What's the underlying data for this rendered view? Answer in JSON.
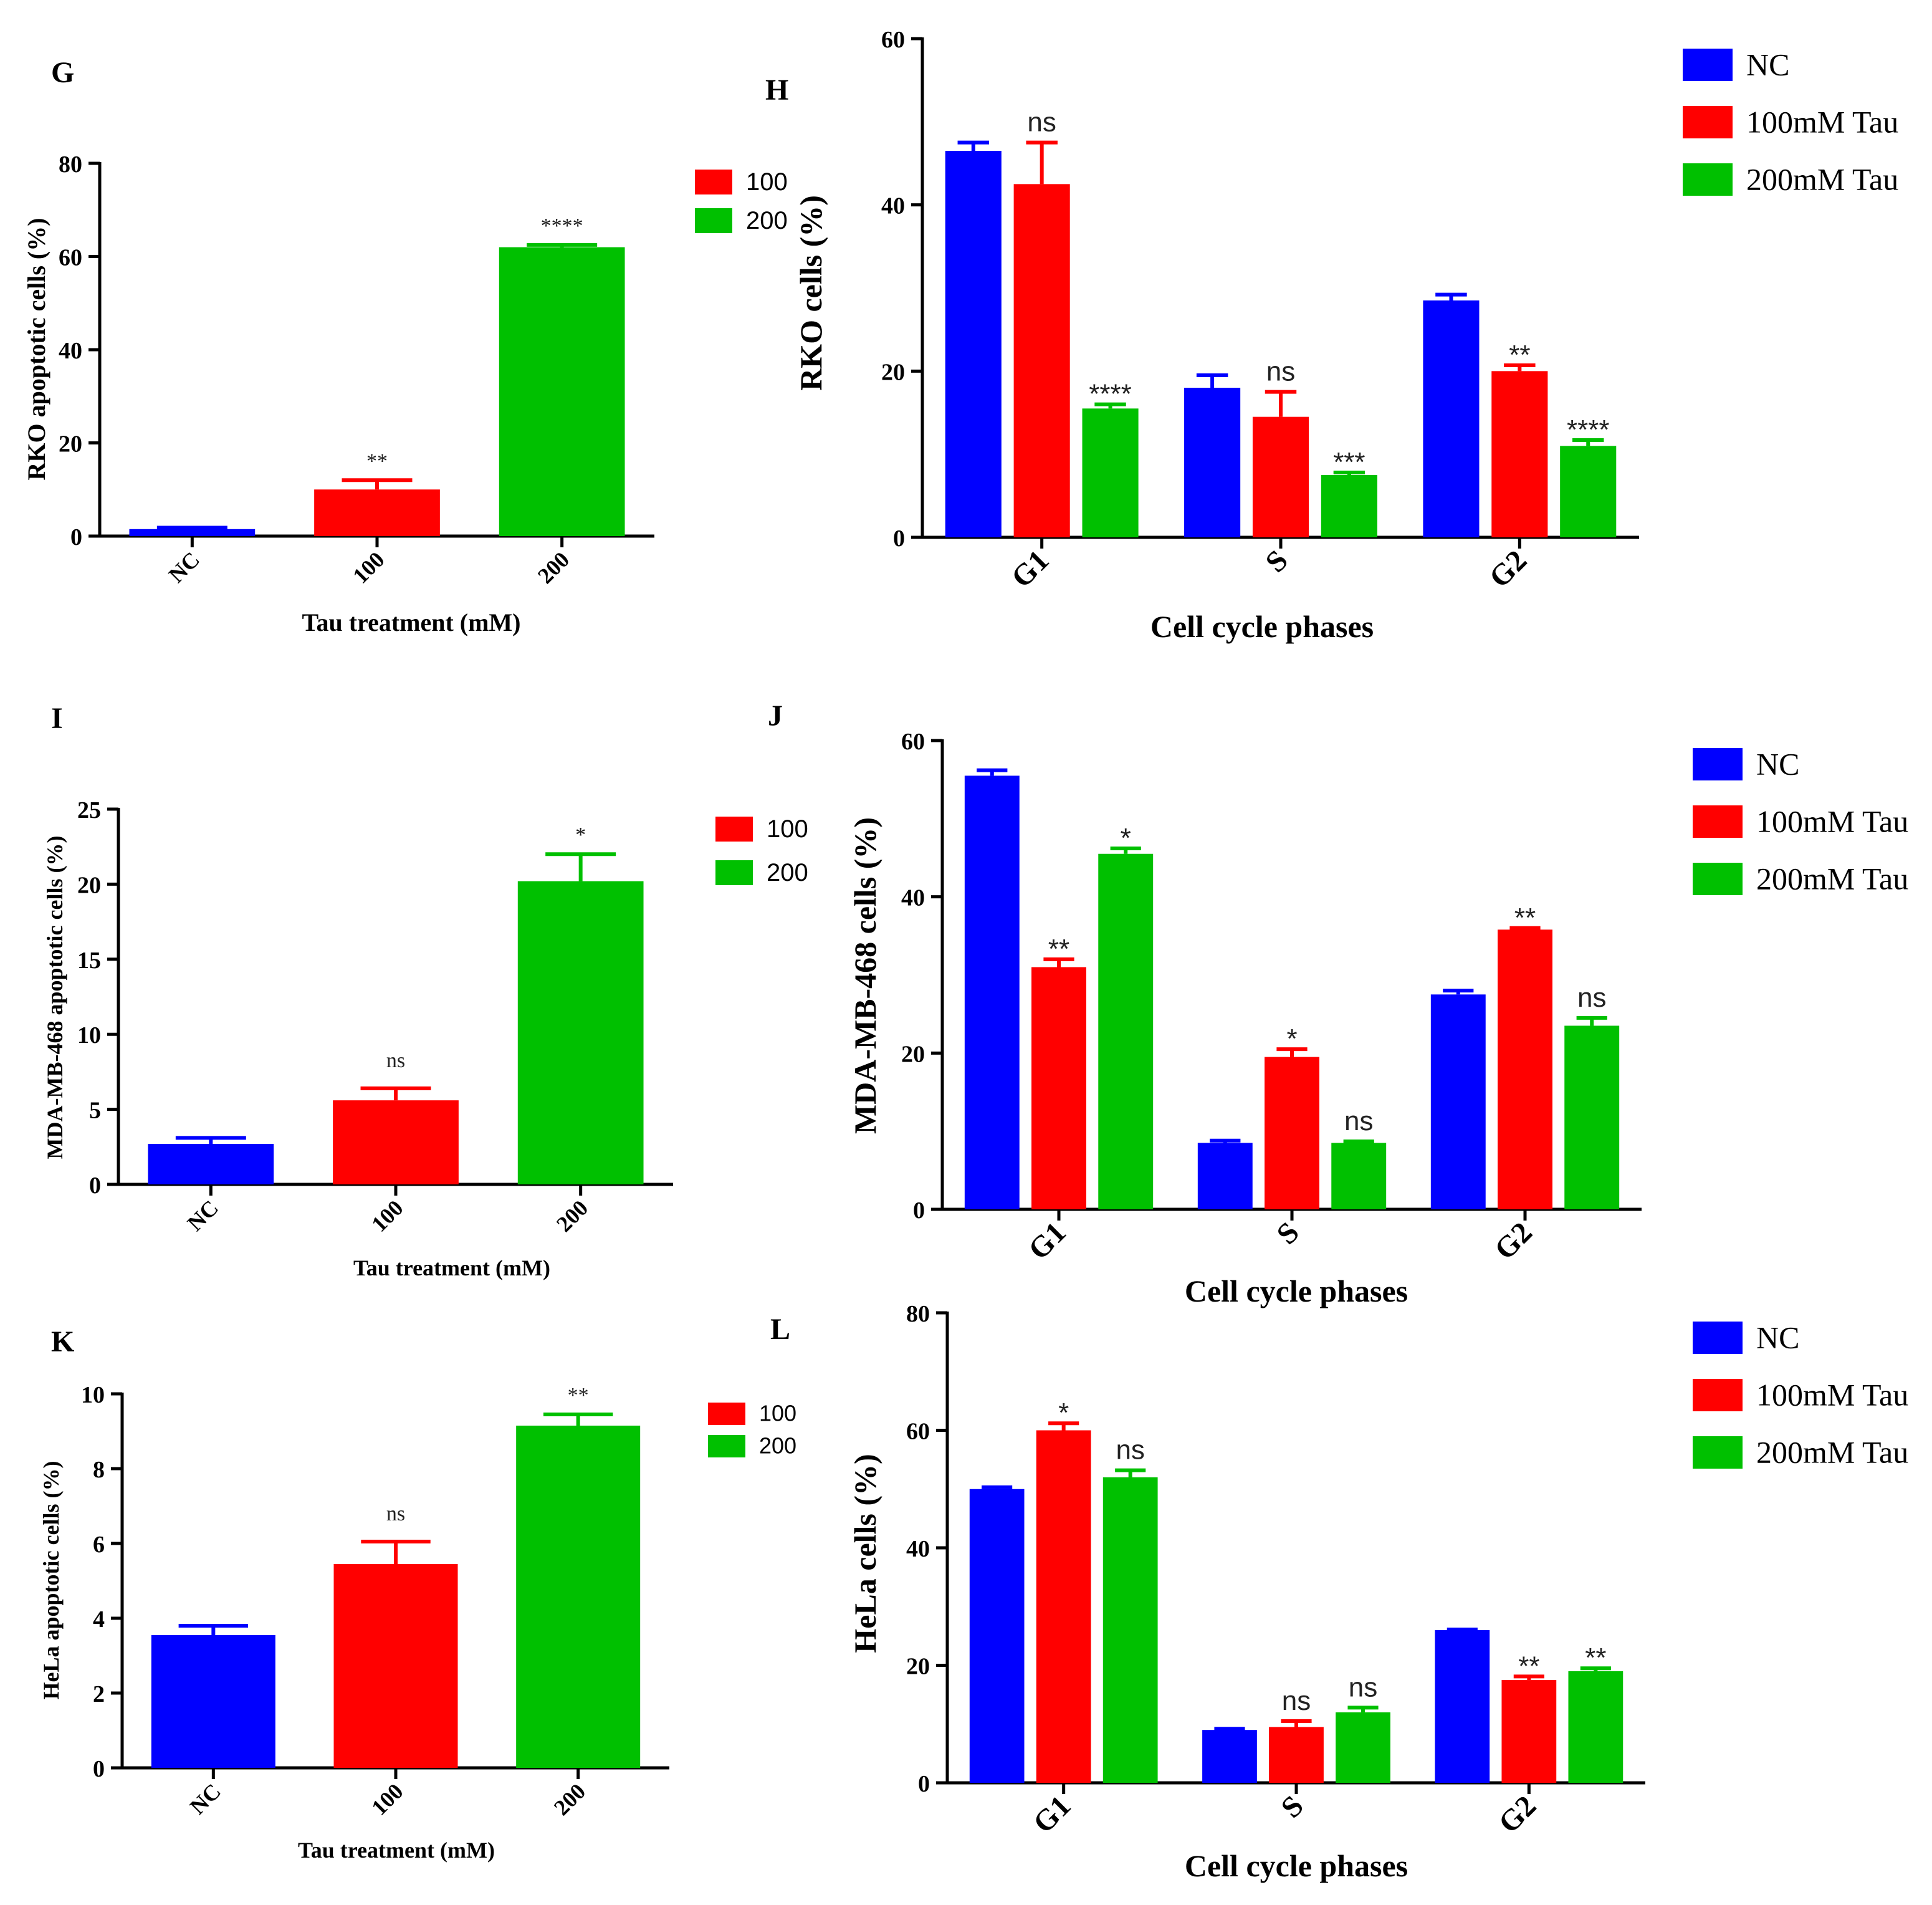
{
  "colors": {
    "NC": "#0000ff",
    "100": "#ff0000",
    "200": "#00c000",
    "axis": "#000000"
  },
  "chart_data": [
    {
      "id": "G",
      "type": "bar",
      "panel_label": "G",
      "title": "",
      "ylabel": "RKO apoptotic cells (%)",
      "xlabel": "Tau treatment (mM)",
      "ylim": [
        0,
        80
      ],
      "yticks": [
        0,
        20,
        40,
        60,
        80
      ],
      "categories": [
        "NC",
        "100",
        "200"
      ],
      "values": [
        1.5,
        10,
        62
      ],
      "errors": [
        0.3,
        2,
        0.5
      ],
      "annotations": [
        "",
        "**",
        "****"
      ],
      "legend": [
        "100",
        "200"
      ],
      "legend_position": "right"
    },
    {
      "id": "H",
      "type": "bar",
      "panel_label": "H",
      "title": "",
      "ylabel": "RKO cells (%)",
      "xlabel": "Cell cycle phases",
      "ylim": [
        0,
        60
      ],
      "yticks": [
        0,
        20,
        40,
        60
      ],
      "categories": [
        "G1",
        "S",
        "G2"
      ],
      "series": [
        {
          "name": "NC",
          "values": [
            46.5,
            18,
            28.5
          ],
          "errors": [
            1,
            1.5,
            0.7
          ],
          "annotations": [
            "",
            "",
            ""
          ]
        },
        {
          "name": "100mM Tau",
          "values": [
            42.5,
            14.5,
            20
          ],
          "errors": [
            5,
            3,
            0.7
          ],
          "annotations": [
            "ns",
            "ns",
            "**"
          ]
        },
        {
          "name": "200mM Tau",
          "values": [
            15.5,
            7.5,
            11
          ],
          "errors": [
            0.5,
            0.3,
            0.7
          ],
          "annotations": [
            "****",
            "***",
            "****"
          ]
        }
      ],
      "legend": [
        "NC",
        "100mM Tau",
        "200mM Tau"
      ],
      "legend_position": "top-right"
    },
    {
      "id": "I",
      "type": "bar",
      "panel_label": "I",
      "title": "",
      "ylabel": "MDA-MB-468 apoptotic cells (%)",
      "xlabel": "Tau treatment (mM)",
      "ylim": [
        0,
        25
      ],
      "yticks": [
        0,
        5,
        10,
        15,
        20,
        25
      ],
      "categories": [
        "NC",
        "100",
        "200"
      ],
      "values": [
        2.7,
        5.6,
        20.2
      ],
      "errors": [
        0.4,
        0.8,
        1.8
      ],
      "annotations": [
        "",
        "ns",
        "*"
      ],
      "legend": [
        "100",
        "200"
      ],
      "legend_position": "right"
    },
    {
      "id": "J",
      "type": "bar",
      "panel_label": "J",
      "title": "",
      "ylabel": "MDA-MB-468 cells (%)",
      "xlabel": "Cell cycle phases",
      "ylim": [
        0,
        60
      ],
      "yticks": [
        0,
        20,
        40,
        60
      ],
      "categories": [
        "G1",
        "S",
        "G2"
      ],
      "series": [
        {
          "name": "NC",
          "values": [
            55.5,
            8.5,
            27.5
          ],
          "errors": [
            0.7,
            0.3,
            0.5
          ],
          "annotations": [
            "",
            "",
            ""
          ]
        },
        {
          "name": "100mM Tau",
          "values": [
            31,
            19.5,
            35.8
          ],
          "errors": [
            1,
            1,
            0.2
          ],
          "annotations": [
            "**",
            "*",
            "**"
          ]
        },
        {
          "name": "200mM Tau",
          "values": [
            45.5,
            8.5,
            23.5
          ],
          "errors": [
            0.7,
            0.2,
            1
          ],
          "annotations": [
            "*",
            "ns",
            "ns"
          ]
        }
      ],
      "legend": [
        "NC",
        "100mM Tau",
        "200mM Tau"
      ],
      "legend_position": "top-right"
    },
    {
      "id": "K",
      "type": "bar",
      "panel_label": "K",
      "title": "",
      "ylabel": "HeLa apoptotic cells (%)",
      "xlabel": "Tau treatment (mM)",
      "ylim": [
        0,
        10
      ],
      "yticks": [
        0,
        2,
        4,
        6,
        8,
        10
      ],
      "categories": [
        "NC",
        "100",
        "200"
      ],
      "values": [
        3.55,
        5.45,
        9.15
      ],
      "errors": [
        0.25,
        0.6,
        0.3
      ],
      "annotations": [
        "",
        "ns",
        "**"
      ],
      "legend": [
        "100",
        "200"
      ],
      "legend_position": "right"
    },
    {
      "id": "L",
      "type": "bar",
      "panel_label": "L",
      "title": "",
      "ylabel": "HeLa cells (%)",
      "xlabel": "Cell cycle phases",
      "ylim": [
        0,
        80
      ],
      "yticks": [
        0,
        20,
        40,
        60,
        80
      ],
      "categories": [
        "G1",
        "S",
        "G2"
      ],
      "series": [
        {
          "name": "NC",
          "values": [
            50,
            9,
            26
          ],
          "errors": [
            0.3,
            0.2,
            0.1
          ],
          "annotations": [
            "",
            "",
            ""
          ]
        },
        {
          "name": "100mM Tau",
          "values": [
            60,
            9.5,
            17.5
          ],
          "errors": [
            1.2,
            1,
            0.6
          ],
          "annotations": [
            "*",
            "ns",
            "**"
          ]
        },
        {
          "name": "200mM Tau",
          "values": [
            52,
            12,
            19
          ],
          "errors": [
            1.2,
            0.8,
            0.5
          ],
          "annotations": [
            "ns",
            "ns",
            "**"
          ]
        }
      ],
      "legend": [
        "NC",
        "100mM Tau",
        "200mM Tau"
      ],
      "legend_position": "top-right"
    }
  ]
}
